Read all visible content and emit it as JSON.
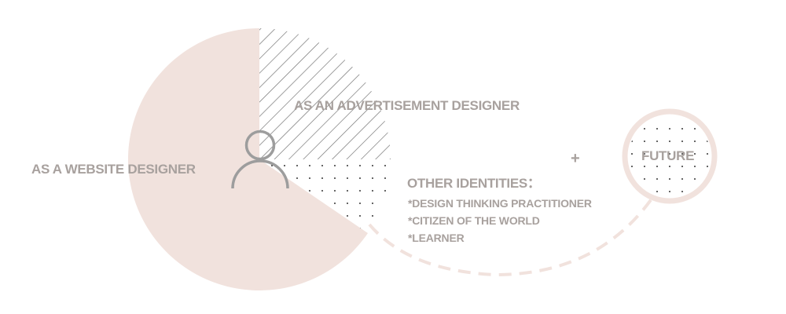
{
  "colors": {
    "pink": "#f1e2dd",
    "text": "#a8a19e",
    "hatch": "#6b6b6b",
    "dots": "#3c3c3c",
    "person": "#9d9d9d"
  },
  "icons": {
    "person": "person-icon"
  },
  "segments": {
    "website": {
      "label": "AS A WEBSITE DESIGNER",
      "fill": "solid-pink"
    },
    "advertisement": {
      "label": "AS AN ADVERTISEMENT DESIGNER",
      "fill": "diagonal-hatch"
    },
    "other": {
      "label": "OTHER IDENTITIES：",
      "fill": "dots"
    }
  },
  "other_identities": [
    "*DESIGN THINKING PRACTITIONER",
    "*CITIZEN OF THE WORLD",
    "*LEARNER"
  ],
  "plus_sign": "+",
  "future": {
    "label": "FUTURE",
    "fill": "dots",
    "connector": "dashed-arc"
  }
}
